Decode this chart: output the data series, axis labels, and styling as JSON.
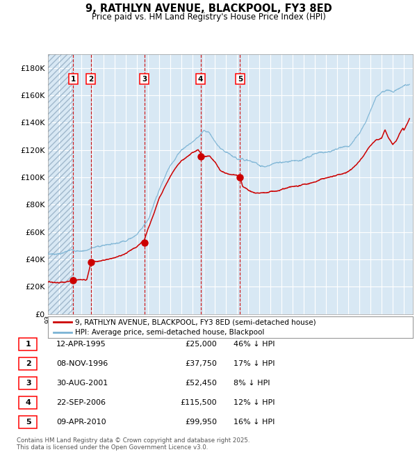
{
  "title_line1": "9, RATHLYN AVENUE, BLACKPOOL, FY3 8ED",
  "title_line2": "Price paid vs. HM Land Registry's House Price Index (HPI)",
  "legend_line1": "9, RATHLYN AVENUE, BLACKPOOL, FY3 8ED (semi-detached house)",
  "legend_line2": "HPI: Average price, semi-detached house, Blackpool",
  "footer": "Contains HM Land Registry data © Crown copyright and database right 2025.\nThis data is licensed under the Open Government Licence v3.0.",
  "sale_dates": [
    1995.28,
    1996.85,
    2001.66,
    2006.72,
    2010.27
  ],
  "sale_prices": [
    25000,
    37750,
    52450,
    115500,
    99950
  ],
  "sale_labels": [
    "1",
    "2",
    "3",
    "4",
    "5"
  ],
  "table_rows": [
    [
      "1",
      "12-APR-1995",
      "£25,000",
      "46% ↓ HPI"
    ],
    [
      "2",
      "08-NOV-1996",
      "£37,750",
      "17% ↓ HPI"
    ],
    [
      "3",
      "30-AUG-2001",
      "£52,450",
      "8% ↓ HPI"
    ],
    [
      "4",
      "22-SEP-2006",
      "£115,500",
      "12% ↓ HPI"
    ],
    [
      "5",
      "09-APR-2010",
      "£99,950",
      "16% ↓ HPI"
    ]
  ],
  "hpi_color": "#7ab3d4",
  "price_color": "#cc0000",
  "dashed_color": "#cc0000",
  "bg_color": "#d8e8f4",
  "grid_color": "#ffffff",
  "ylim": [
    0,
    190000
  ],
  "xlim_start": 1993.0,
  "xlim_end": 2025.8,
  "ylabel_step": 20000
}
